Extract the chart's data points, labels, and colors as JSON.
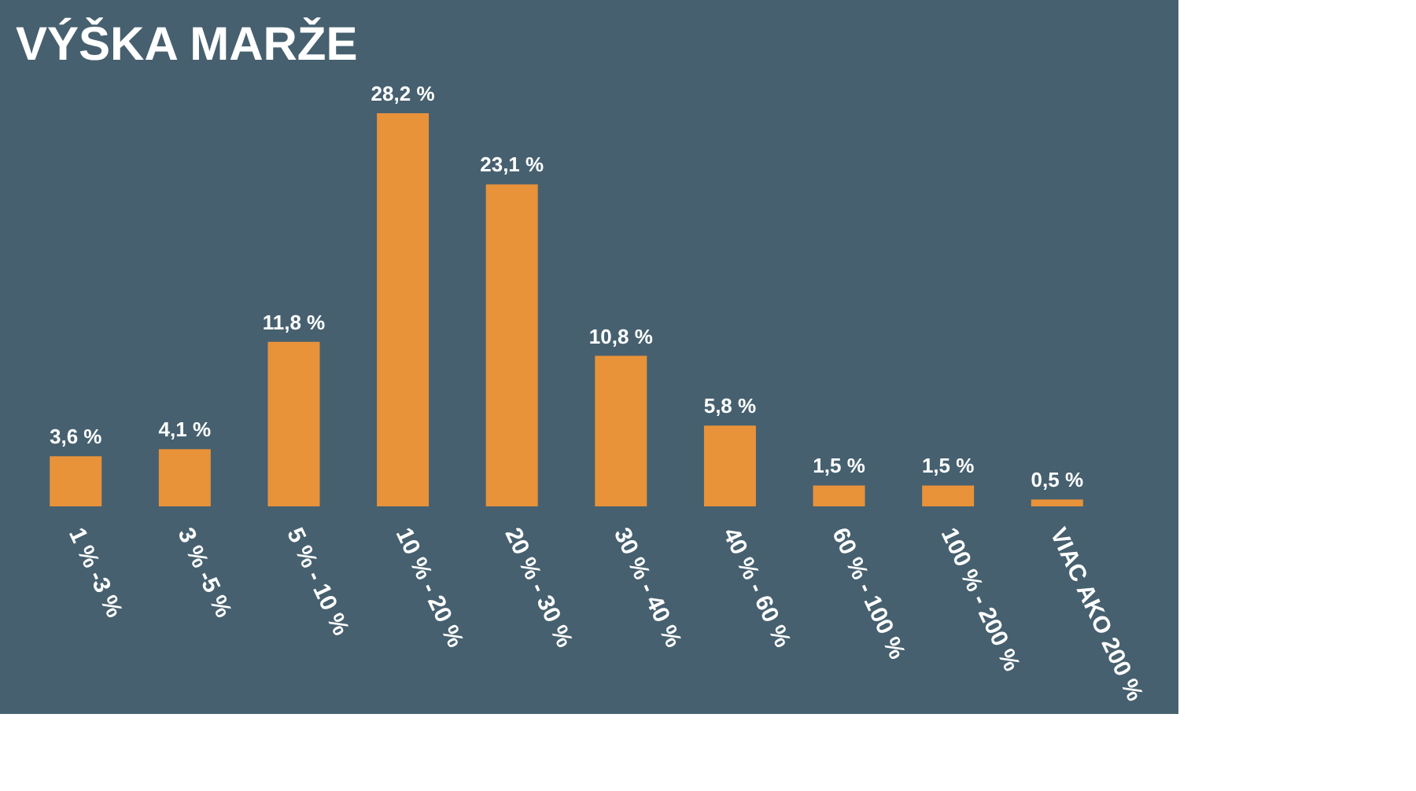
{
  "chart_data": {
    "type": "bar",
    "title": "VÝŠKA MARŽE",
    "categories": [
      "1 % -3 %",
      "3 % -5 %",
      "5 % - 10 %",
      "10 % - 20 %",
      "20 % - 30 %",
      "30 % - 40 %",
      "40 % - 60 %",
      "60 % - 100 %",
      "100 % - 200 %",
      "VIAC AKO 200 %"
    ],
    "values": [
      3.6,
      4.1,
      11.8,
      28.2,
      23.1,
      10.8,
      5.8,
      1.5,
      1.5,
      0.5
    ],
    "value_labels": [
      "3,6 %",
      "4,1 %",
      "11,8 %",
      "28,2 %",
      "23,1 %",
      "10,8 %",
      "5,8 %",
      "1,5 %",
      "1,5 %",
      "0,5 %"
    ],
    "color": "#e8923a",
    "tick_labels": "x",
    "grid": false
  }
}
